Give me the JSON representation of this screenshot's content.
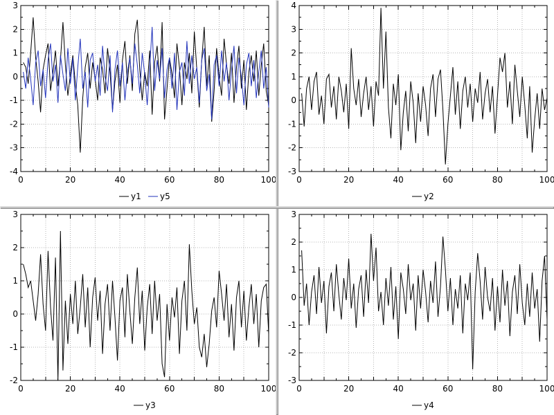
{
  "window": {
    "background": "#ffffff",
    "splitter_color": "#c2c2c2",
    "grid_color": "#b4b4b4",
    "axis_color": "#000000"
  },
  "x": [
    1,
    2,
    3,
    4,
    5,
    6,
    7,
    8,
    9,
    10,
    11,
    12,
    13,
    14,
    15,
    16,
    17,
    18,
    19,
    20,
    21,
    22,
    23,
    24,
    25,
    26,
    27,
    28,
    29,
    30,
    31,
    32,
    33,
    34,
    35,
    36,
    37,
    38,
    39,
    40,
    41,
    42,
    43,
    44,
    45,
    46,
    47,
    48,
    49,
    50,
    51,
    52,
    53,
    54,
    55,
    56,
    57,
    58,
    59,
    60,
    61,
    62,
    63,
    64,
    65,
    66,
    67,
    68,
    69,
    70,
    71,
    72,
    73,
    74,
    75,
    76,
    77,
    78,
    79,
    80,
    81,
    82,
    83,
    84,
    85,
    86,
    87,
    88,
    89,
    90,
    91,
    92,
    93,
    94,
    95,
    96,
    97,
    98,
    99,
    100
  ],
  "chart_data": [
    {
      "id": "chart-y1-y5",
      "type": "line",
      "position": "top-left",
      "x_range": [
        0,
        100
      ],
      "y_range": [
        -4,
        3
      ],
      "x_tick_labels": [
        0,
        20,
        40,
        60,
        80,
        100
      ],
      "x_grid_step": 10,
      "x_minor_step": 5,
      "y_tick_step": 1,
      "y_minor_step": 0.5,
      "grid_style": "dotted",
      "legend_position": "bottom-center",
      "series": [
        {
          "name": "y1",
          "color": "#000000",
          "values": [
            0.6,
            0.4,
            -0.3,
            1.0,
            2.5,
            0.8,
            -0.2,
            -1.5,
            0.3,
            0.9,
            1.4,
            -0.6,
            0.2,
            1.1,
            -0.4,
            0.7,
            2.3,
            0.5,
            -0.8,
            0.1,
            0.9,
            -0.3,
            -1.2,
            -3.2,
            -0.9,
            0.4,
            1.0,
            -0.5,
            0.6,
            -0.1,
            -1.0,
            0.8,
            0.3,
            -0.7,
            1.2,
            0.2,
            -1.4,
            -0.2,
            0.5,
            -1.1,
            0.7,
            1.5,
            -0.3,
            0.9,
            -0.6,
            1.8,
            2.4,
            0.3,
            -1.0,
            0.2,
            -0.4,
            1.1,
            -1.6,
            0.6,
            1.3,
            -0.2,
            2.3,
            -1.8,
            -0.5,
            0.8,
            0.1,
            -0.9,
            1.4,
            0.4,
            -1.2,
            0.6,
            -0.1,
            1.0,
            -0.7,
            1.9,
            0.3,
            -1.3,
            0.7,
            2.1,
            -0.4,
            0.9,
            -1.9,
            -0.6,
            1.2,
            0.0,
            -0.8,
            1.6,
            0.5,
            -0.3,
            1.0,
            -1.1,
            0.4,
            1.3,
            -0.5,
            0.7,
            -1.4,
            0.2,
            0.9,
            -0.2,
            1.1,
            -0.8,
            0.5,
            1.4,
            -0.6,
            -1.2
          ]
        },
        {
          "name": "y5",
          "color": "#2233bb",
          "values": [
            0.2,
            -0.5,
            0.8,
            -0.1,
            -1.2,
            0.6,
            1.1,
            -0.4,
            0.3,
            -0.9,
            0.7,
            1.4,
            -0.2,
            0.5,
            -1.1,
            0.9,
            0.1,
            -0.6,
            1.2,
            -0.3,
            0.8,
            -1.0,
            0.4,
            1.6,
            -0.5,
            0.2,
            -1.3,
            0.7,
            1.0,
            -0.2,
            0.5,
            -0.8,
            1.3,
            0.0,
            -0.6,
            0.9,
            -1.5,
            0.3,
            1.1,
            -0.4,
            0.6,
            -1.0,
            0.2,
            0.8,
            -0.3,
            1.4,
            0.5,
            -0.7,
            1.0,
            0.1,
            -1.2,
            0.4,
            2.1,
            -0.6,
            0.7,
            -0.1,
            1.2,
            -0.9,
            0.3,
            0.8,
            -0.5,
            1.0,
            -1.4,
            0.2,
            0.6,
            -0.8,
            1.5,
            -0.3,
            0.9,
            -0.1,
            0.4,
            -1.1,
            0.7,
            1.2,
            -0.6,
            0.1,
            -1.8,
            0.5,
            0.9,
            -0.4,
            1.1,
            -0.2,
            0.6,
            -1.0,
            0.3,
            1.3,
            -0.7,
            0.8,
            0.0,
            -1.2,
            0.5,
            1.0,
            -0.4,
            0.7,
            -0.9,
            0.2,
            1.1,
            -0.5,
            0.4,
            -1.3
          ]
        }
      ]
    },
    {
      "id": "chart-y2",
      "type": "line",
      "position": "top-right",
      "x_range": [
        0,
        100
      ],
      "y_range": [
        -3,
        4
      ],
      "x_tick_labels": [
        0,
        20,
        40,
        60,
        80,
        100
      ],
      "x_grid_step": 10,
      "x_minor_step": 5,
      "y_tick_step": 1,
      "y_minor_step": 0.5,
      "grid_style": "dotted",
      "legend_position": "bottom-center",
      "series": [
        {
          "name": "y2",
          "color": "#000000",
          "values": [
            0.3,
            -1.1,
            0.5,
            1.0,
            -0.4,
            0.8,
            1.2,
            -0.6,
            0.2,
            -1.0,
            0.9,
            1.1,
            -0.3,
            0.6,
            -0.8,
            1.0,
            0.4,
            -0.5,
            0.7,
            -1.2,
            2.2,
            0.5,
            -0.2,
            0.9,
            -0.7,
            0.3,
            1.0,
            -0.4,
            0.6,
            -1.1,
            0.8,
            0.2,
            3.9,
            0.5,
            2.9,
            -0.3,
            -1.6,
            0.7,
            -0.2,
            1.1,
            -2.1,
            -0.5,
            0.4,
            -1.3,
            0.8,
            -0.1,
            -1.8,
            0.3,
            -0.9,
            0.6,
            -0.2,
            -1.5,
            0.5,
            1.1,
            -0.7,
            0.9,
            1.3,
            -0.4,
            -2.7,
            -1.0,
            0.2,
            1.4,
            -0.6,
            0.8,
            -1.2,
            0.4,
            1.0,
            -0.3,
            0.7,
            -0.9,
            0.5,
            -0.1,
            1.2,
            -0.8,
            0.3,
            0.9,
            -0.5,
            0.6,
            -1.4,
            0.2,
            1.8,
            1.2,
            2.0,
            -0.3,
            0.8,
            -1.0,
            1.5,
            0.4,
            -0.7,
            1.0,
            -0.2,
            -1.6,
            0.6,
            -2.2,
            -0.8,
            0.3,
            -1.2,
            0.5,
            -0.4,
            0.1
          ]
        }
      ]
    },
    {
      "id": "chart-y3",
      "type": "line",
      "position": "bottom-left",
      "x_range": [
        0,
        100
      ],
      "y_range": [
        -2,
        3
      ],
      "x_tick_labels": [
        0,
        20,
        40,
        60,
        80,
        100
      ],
      "x_grid_step": 10,
      "x_minor_step": 5,
      "y_tick_step": 1,
      "y_minor_step": 0.5,
      "grid_style": "dotted",
      "legend_position": "bottom-center",
      "series": [
        {
          "name": "y3",
          "color": "#000000",
          "values": [
            1.5,
            1.2,
            0.8,
            1.0,
            0.4,
            -0.2,
            0.6,
            1.8,
            0.3,
            -0.5,
            1.9,
            0.2,
            -0.8,
            1.7,
            -2.0,
            2.5,
            -1.7,
            0.4,
            -0.9,
            0.6,
            -0.3,
            1.0,
            -0.6,
            0.2,
            1.2,
            -0.4,
            0.8,
            -1.0,
            0.5,
            1.1,
            -0.2,
            0.7,
            -1.2,
            0.3,
            0.9,
            -0.5,
            1.0,
            -0.1,
            -1.4,
            0.4,
            0.8,
            -0.7,
            1.2,
            0.1,
            -0.9,
            0.5,
            1.4,
            -0.3,
            0.7,
            -1.1,
            0.2,
            0.9,
            -0.6,
            1.0,
            -0.2,
            0.6,
            -1.5,
            -1.9,
            0.3,
            -0.8,
            0.5,
            -0.1,
            0.8,
            -1.2,
            0.4,
            1.0,
            -0.5,
            2.1,
            0.7,
            -0.3,
            0.2,
            -1.0,
            -1.3,
            -0.6,
            -1.6,
            -0.9,
            0.1,
            0.5,
            -0.4,
            1.3,
            0.6,
            -0.2,
            0.9,
            -0.7,
            0.3,
            -1.1,
            0.5,
            1.0,
            -0.4,
            0.7,
            -0.8,
            0.2,
            0.9,
            -0.3,
            0.6,
            -1.0,
            0.4,
            0.8,
            0.9,
            -0.6
          ]
        }
      ]
    },
    {
      "id": "chart-y4",
      "type": "line",
      "position": "bottom-right",
      "x_range": [
        0,
        100
      ],
      "y_range": [
        -3,
        3
      ],
      "x_tick_labels": [
        0,
        20,
        40,
        60,
        80,
        100
      ],
      "x_grid_step": 10,
      "x_minor_step": 5,
      "y_tick_step": 1,
      "y_minor_step": 0.5,
      "grid_style": "dotted",
      "legend_position": "bottom-center",
      "series": [
        {
          "name": "y4",
          "color": "#000000",
          "values": [
            1.7,
            -0.3,
            0.5,
            -1.0,
            0.2,
            0.8,
            -0.6,
            1.1,
            -0.2,
            0.6,
            -1.3,
            0.4,
            0.9,
            -0.5,
            1.2,
            0.1,
            -0.8,
            0.7,
            -0.1,
            1.4,
            -0.4,
            0.5,
            -1.1,
            0.3,
            0.8,
            -0.7,
            1.0,
            -0.2,
            2.3,
            0.6,
            1.8,
            -0.5,
            0.2,
            -1.0,
            0.7,
            -0.3,
            1.1,
            -0.8,
            0.4,
            -1.5,
            0.9,
            0.3,
            -0.6,
            1.2,
            -0.1,
            0.5,
            -1.2,
            0.8,
            -0.4,
            1.0,
            0.2,
            -0.9,
            0.6,
            -0.2,
            1.3,
            -0.7,
            0.4,
            2.2,
            1.0,
            -0.5,
            0.7,
            -1.0,
            0.3,
            -0.4,
            0.8,
            -1.3,
            0.5,
            -0.1,
            0.9,
            -2.6,
            0.2,
            1.6,
            0.6,
            -0.8,
            1.1,
            0.0,
            -0.5,
            0.7,
            -1.2,
            0.4,
            -0.9,
            1.0,
            -0.3,
            0.6,
            -1.4,
            0.2,
            0.8,
            -0.6,
            1.2,
            -0.2,
            -1.0,
            0.5,
            -0.7,
            0.9,
            -0.4,
            0.3,
            -1.6,
            0.6,
            1.5,
            -0.8
          ]
        }
      ]
    }
  ]
}
